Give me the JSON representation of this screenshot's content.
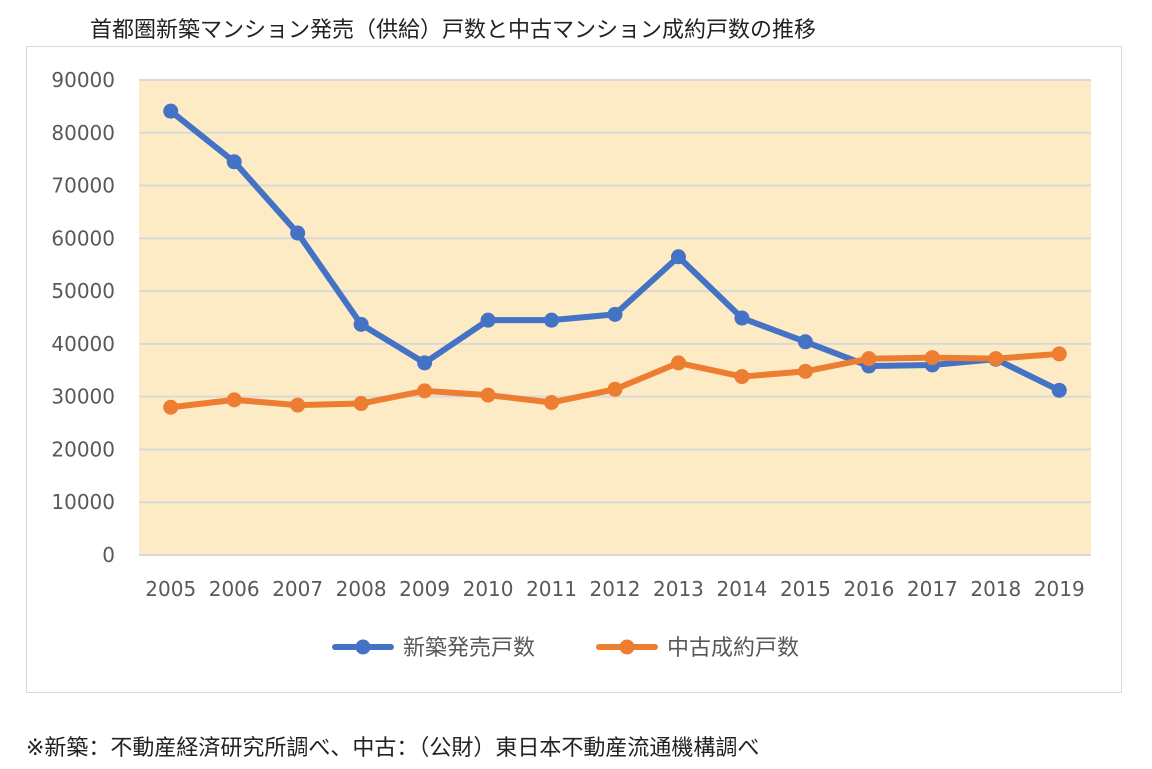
{
  "title": "首都圏新築マンション発売（供給）戸数と中古マンション成約戸数の推移",
  "footnote": "※新築：不動産経済研究所調べ、中古：（公財）東日本不動産流通機構調べ",
  "chart_data": {
    "type": "line",
    "title": "首都圏新築マンション発売（供給）戸数と中古マンション成約戸数の推移",
    "xlabel": "",
    "ylabel": "",
    "ylim": [
      0,
      90000
    ],
    "yticks": [
      "90000",
      "80000",
      "70000",
      "60000",
      "50000",
      "40000",
      "30000",
      "20000",
      "10000",
      "0"
    ],
    "x": [
      "2005",
      "2006",
      "2007",
      "2008",
      "2009",
      "2010",
      "2011",
      "2012",
      "2013",
      "2014",
      "2015",
      "2016",
      "2017",
      "2018",
      "2019"
    ],
    "grid": true,
    "legend_position": "bottom",
    "plot_background": "#fdebc6",
    "series": [
      {
        "name": "新築発売戸数",
        "color": "#4472c4",
        "values": [
          84100,
          74500,
          61000,
          43700,
          36400,
          44500,
          44500,
          45600,
          56500,
          44900,
          40400,
          35800,
          36000,
          37100,
          31200
        ]
      },
      {
        "name": "中古成約戸数",
        "color": "#ed7d31",
        "values": [
          28000,
          29400,
          28400,
          28700,
          31100,
          30300,
          28900,
          31400,
          36400,
          33800,
          34800,
          37200,
          37400,
          37200,
          38100
        ]
      }
    ]
  }
}
